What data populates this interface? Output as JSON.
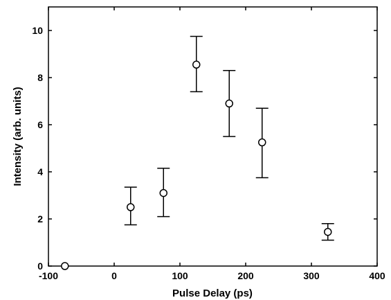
{
  "chart_data": {
    "type": "scatter",
    "title": "",
    "xlabel": "Pulse Delay (ps)",
    "ylabel": "Intensity (arb. units)",
    "xlim": [
      -100,
      400
    ],
    "ylim": [
      0,
      11
    ],
    "xticks": [
      -100,
      0,
      100,
      200,
      300,
      400
    ],
    "yticks": [
      0,
      2,
      4,
      6,
      8,
      10
    ],
    "marker": "open-circle",
    "color": "#000000",
    "grid": false,
    "legend": "none",
    "points": [
      {
        "x": -75,
        "y": 0.0
      },
      {
        "x": 25,
        "y": 2.5,
        "err_low": 1.75,
        "err_high": 3.35
      },
      {
        "x": 75,
        "y": 3.1,
        "err_low": 2.1,
        "err_high": 4.15
      },
      {
        "x": 125,
        "y": 8.55,
        "err_low": 7.4,
        "err_high": 9.75
      },
      {
        "x": 175,
        "y": 6.9,
        "err_low": 5.5,
        "err_high": 8.3
      },
      {
        "x": 225,
        "y": 5.25,
        "err_low": 3.75,
        "err_high": 6.7
      },
      {
        "x": 325,
        "y": 1.45,
        "err_low": 1.1,
        "err_high": 1.8
      }
    ]
  }
}
